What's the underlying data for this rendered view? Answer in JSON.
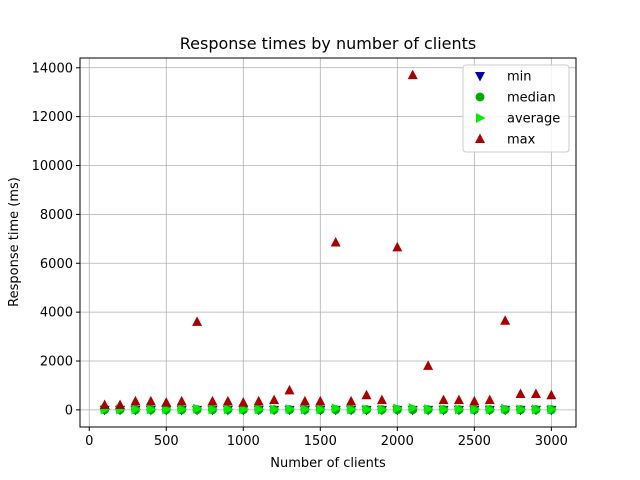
{
  "chart_data": {
    "type": "scatter",
    "title": "Response times by number of clients",
    "xlabel": "Number of clients",
    "ylabel": "Response time (ms)",
    "xlim": [
      -60,
      3160
    ],
    "ylim": [
      -700,
      14400
    ],
    "xticks": [
      0,
      500,
      1000,
      1500,
      2000,
      2500,
      3000
    ],
    "yticks": [
      0,
      2000,
      4000,
      6000,
      8000,
      10000,
      12000,
      14000
    ],
    "grid": true,
    "legend_position": "top-right",
    "x": [
      100,
      200,
      300,
      400,
      500,
      600,
      700,
      800,
      900,
      1000,
      1100,
      1200,
      1300,
      1400,
      1500,
      1600,
      1700,
      1800,
      1900,
      2000,
      2100,
      2200,
      2300,
      2400,
      2500,
      2600,
      2700,
      2800,
      2900,
      3000
    ],
    "series": [
      {
        "name": "min",
        "marker": "triangle-down",
        "color": "#0000aa",
        "values": [
          0,
          0,
          0,
          0,
          0,
          0,
          0,
          0,
          0,
          0,
          0,
          0,
          0,
          0,
          0,
          0,
          0,
          0,
          0,
          0,
          0,
          0,
          0,
          0,
          0,
          0,
          0,
          0,
          0,
          0
        ]
      },
      {
        "name": "median",
        "marker": "circle",
        "color": "#00aa00",
        "values": [
          10,
          10,
          10,
          10,
          10,
          10,
          10,
          10,
          10,
          10,
          10,
          10,
          10,
          10,
          10,
          10,
          10,
          10,
          10,
          10,
          10,
          10,
          10,
          10,
          10,
          10,
          10,
          10,
          10,
          10
        ]
      },
      {
        "name": "average",
        "marker": "triangle-right",
        "color": "#00ee00",
        "values": [
          20,
          20,
          20,
          20,
          20,
          20,
          50,
          20,
          20,
          20,
          20,
          20,
          30,
          20,
          20,
          60,
          20,
          20,
          20,
          60,
          80,
          30,
          20,
          20,
          20,
          20,
          50,
          20,
          20,
          20
        ]
      },
      {
        "name": "max",
        "marker": "triangle-up",
        "color": "#aa0000",
        "values": [
          200,
          200,
          350,
          350,
          300,
          350,
          3600,
          350,
          350,
          300,
          350,
          400,
          800,
          350,
          350,
          6850,
          350,
          600,
          400,
          6650,
          13700,
          1800,
          400,
          400,
          350,
          400,
          3650,
          650,
          650,
          600
        ]
      }
    ]
  }
}
